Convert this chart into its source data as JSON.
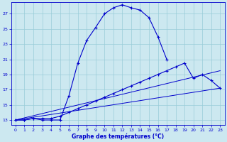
{
  "title": "Graphe des températures (°C)",
  "bg_color": "#cce8f0",
  "grid_color": "#99ccd9",
  "line_color": "#0000cc",
  "x_ticks": [
    0,
    1,
    2,
    3,
    4,
    5,
    6,
    7,
    8,
    9,
    10,
    11,
    12,
    13,
    14,
    15,
    16,
    17,
    18,
    19,
    20,
    21,
    22,
    23
  ],
  "y_ticks": [
    13,
    15,
    17,
    19,
    21,
    23,
    25,
    27
  ],
  "ylim": [
    12.3,
    28.5
  ],
  "xlim": [
    -0.5,
    23.5
  ],
  "line1_x": [
    0,
    1,
    2,
    3,
    4,
    5,
    6,
    7,
    8,
    9,
    10,
    11,
    12,
    13,
    14,
    15,
    16,
    17
  ],
  "line1_y": [
    13,
    13,
    13.2,
    13,
    13,
    13,
    16.2,
    20.5,
    23.5,
    25.2,
    27,
    27.8,
    28.2,
    27.8,
    27.5,
    26.5,
    24,
    21
  ],
  "line2_x": [
    0,
    1,
    2,
    3,
    4,
    5,
    6,
    7,
    8,
    9,
    10,
    11,
    12,
    13,
    14,
    15,
    16,
    17,
    18,
    19,
    20,
    21,
    22,
    23
  ],
  "line2_y": [
    13,
    13,
    13.2,
    13.2,
    13.2,
    13.5,
    14,
    14.5,
    15,
    15.5,
    16,
    16.5,
    17,
    17.5,
    18,
    18.5,
    19,
    19.5,
    20,
    20.5,
    18.5,
    19,
    18.2,
    17.2
  ],
  "line3_x": [
    0,
    23
  ],
  "line3_y": [
    13,
    19.5
  ],
  "line4_x": [
    0,
    23
  ],
  "line4_y": [
    13,
    17.2
  ]
}
